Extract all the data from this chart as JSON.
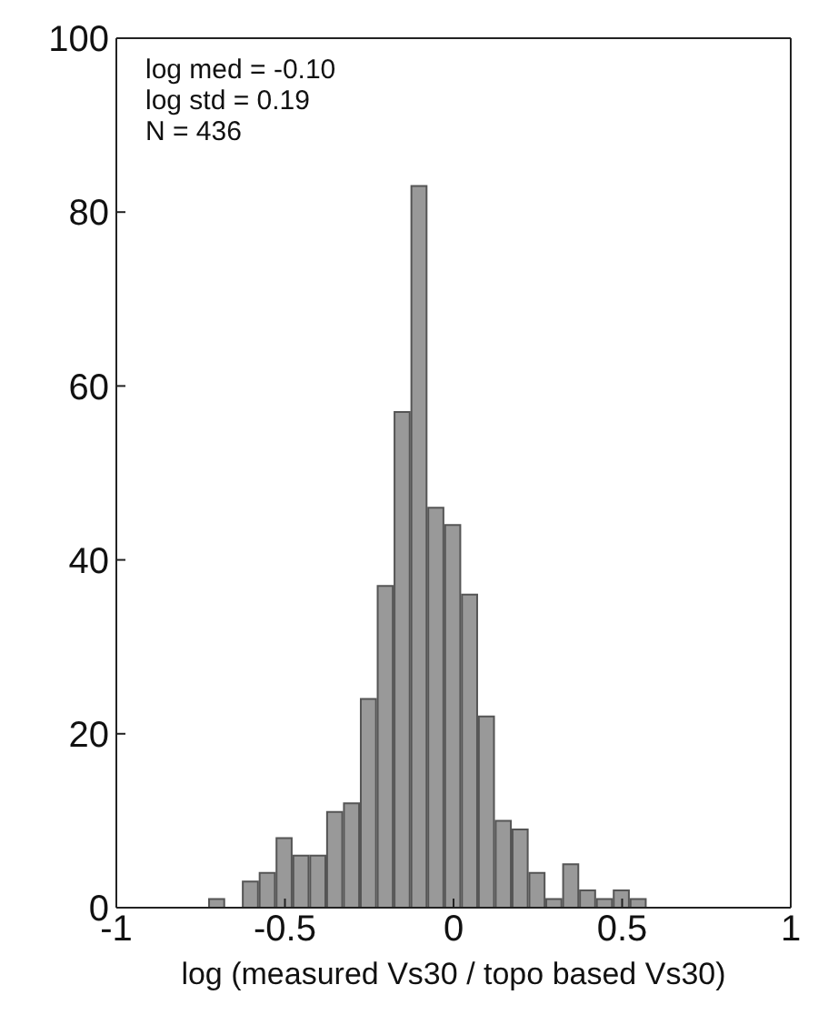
{
  "chart_data": {
    "type": "histogram",
    "xlabel": "log (measured Vs30 / topo based Vs30)",
    "annotations": [
      "log med = -0.10",
      "log std = 0.19",
      "N = 436"
    ],
    "bins": [
      -0.725,
      -0.675,
      -0.625,
      -0.575,
      -0.525,
      -0.475,
      -0.425,
      -0.375,
      -0.325,
      -0.275,
      -0.225,
      -0.175,
      -0.125,
      -0.075,
      -0.025,
      0.025,
      0.075,
      0.125,
      0.175,
      0.225,
      0.275,
      0.325,
      0.375,
      0.425,
      0.475,
      0.525,
      0.575
    ],
    "values": [
      1,
      0,
      3,
      4,
      8,
      6,
      6,
      11,
      12,
      24,
      37,
      57,
      83,
      46,
      44,
      36,
      22,
      10,
      9,
      4,
      1,
      5,
      2,
      1,
      2,
      1
    ],
    "color": "#999999",
    "xlim": [
      -1,
      1
    ],
    "xticks": [
      -1,
      -0.5,
      0,
      0.5,
      1
    ],
    "ylim": [
      0,
      100
    ],
    "yticks": [
      0,
      20,
      40,
      60,
      80,
      100
    ],
    "grid": false,
    "legend": false
  }
}
